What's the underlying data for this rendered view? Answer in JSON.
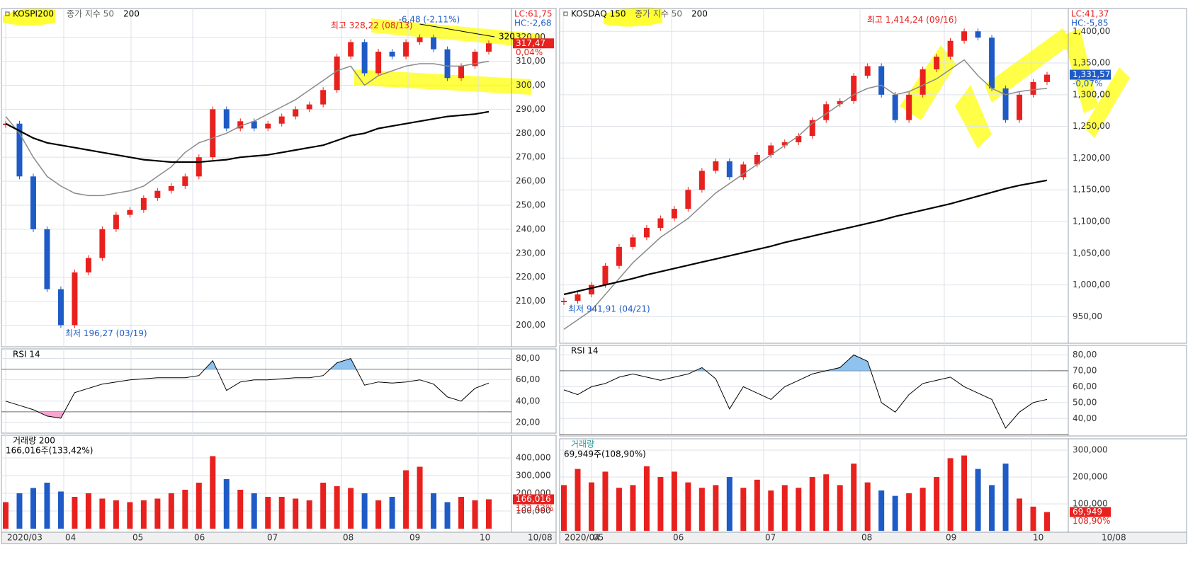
{
  "colors": {
    "up": "#e8211e",
    "down": "#1f5bc6",
    "ma50": "#8a8a8a",
    "ma200": "#000000",
    "rsi_over": "#8ec3f0",
    "rsi_under": "#f5a6cf",
    "text_up": "#e8211e",
    "text_down": "#1f5bc6"
  },
  "panels": [
    {
      "symbol": "KOSPI200",
      "legend_ma": "종가 지수 50",
      "legend_ma2": "200",
      "lc": "LC:61,75",
      "hc": "HC:-2,68",
      "last_price": "317,47",
      "last_change": "0,04%",
      "annotations": {
        "high": "최고 328,22 (08/13)",
        "low": "최저 196,27 (03/19)",
        "drop": "-6,48 (-2,11%)",
        "trend": "320"
      },
      "x_labels": [
        "2020/03",
        "04",
        "05",
        "06",
        "07",
        "08",
        "09",
        "10"
      ],
      "date": "10/08",
      "price": {
        "ylim": [
          191,
          332
        ],
        "yticks": [
          {
            "value": 200,
            "label": "200,00"
          },
          {
            "value": 210,
            "label": "210,00"
          },
          {
            "value": 220,
            "label": "220,00"
          },
          {
            "value": 230,
            "label": "230,00"
          },
          {
            "value": 240,
            "label": "240,00"
          },
          {
            "value": 250,
            "label": "250,00"
          },
          {
            "value": 260,
            "label": "260,00"
          },
          {
            "value": 270,
            "label": "270,00"
          },
          {
            "value": 280,
            "label": "280,00"
          },
          {
            "value": 290,
            "label": "290,00"
          },
          {
            "value": 300,
            "label": "300,00"
          },
          {
            "value": 310,
            "label": "310,00"
          },
          {
            "value": 320,
            "label": "320,00"
          }
        ],
        "close": [
          284,
          262,
          240,
          215,
          200,
          222,
          228,
          240,
          246,
          248,
          253,
          256,
          258,
          262,
          270,
          290,
          282,
          285,
          282,
          284,
          287,
          290,
          292,
          298,
          312,
          318,
          305,
          314,
          312,
          318,
          320,
          315,
          303,
          308,
          314,
          317.47
        ],
        "ma50": [
          287,
          280,
          270,
          262,
          258,
          255,
          254,
          254,
          255,
          256,
          258,
          262,
          266,
          272,
          276,
          278,
          280,
          283,
          285,
          288,
          291,
          294,
          298,
          302,
          306,
          308,
          300,
          304,
          306,
          308,
          309,
          309,
          308,
          308,
          309,
          310
        ],
        "ma200": [
          284,
          281,
          278,
          276,
          275,
          274,
          273,
          272,
          271,
          270,
          269,
          268.5,
          268,
          268,
          268,
          268.5,
          269,
          270,
          270.5,
          271,
          272,
          273,
          274,
          275,
          277,
          279,
          280,
          282,
          283,
          284,
          285,
          286,
          287,
          287.5,
          288,
          289
        ]
      },
      "rsi": {
        "title": "RSI 14",
        "ylim": [
          10,
          89
        ],
        "levels": [
          70,
          30
        ],
        "yticks": [
          {
            "value": 20,
            "label": "20,00"
          },
          {
            "value": 40,
            "label": "40,00"
          },
          {
            "value": 60,
            "label": "60,00"
          },
          {
            "value": 80,
            "label": "80,00"
          }
        ],
        "values": [
          40,
          36,
          32,
          26,
          24,
          48,
          52,
          56,
          58,
          60,
          61,
          62,
          62,
          62,
          64,
          78,
          50,
          58,
          60,
          60,
          61,
          62,
          62,
          64,
          76,
          80,
          55,
          58,
          57,
          58,
          60,
          56,
          44,
          40,
          52,
          57
        ]
      },
      "volume": {
        "title": "거래량 200",
        "summary": "166,016주(133,42%)",
        "last": "166,016",
        "ratio": "133,42%",
        "ylim": [
          -20000,
          528000
        ],
        "yticks": [
          {
            "value": 100000,
            "label": "100,000"
          },
          {
            "value": 200000,
            "label": "200,000"
          },
          {
            "value": 300000,
            "label": "300,000"
          },
          {
            "value": 400000,
            "label": "400,000"
          }
        ],
        "values": [
          150000,
          200000,
          230000,
          260000,
          210000,
          180000,
          200000,
          170000,
          160000,
          150000,
          160000,
          170000,
          200000,
          220000,
          260000,
          410000,
          280000,
          220000,
          200000,
          180000,
          180000,
          170000,
          160000,
          260000,
          240000,
          230000,
          200000,
          160000,
          180000,
          330000,
          350000,
          200000,
          150000,
          180000,
          160000,
          166016
        ]
      }
    },
    {
      "symbol": "KOSDAQ 150",
      "legend_ma": "종가 지수 50",
      "legend_ma2": "200",
      "lc": "LC:41,37",
      "hc": "HC:-5,85",
      "last_price": "1,331,57",
      "last_change": "-0,07%",
      "annotations": {
        "high": "최고 1,414,24 (09/16)",
        "low": "최저 941,91 (04/21)"
      },
      "x_labels": [
        "2020/04",
        "05",
        "06",
        "07",
        "08",
        "09",
        "10"
      ],
      "date": "10/08",
      "price": {
        "ylim": [
          908,
          1436
        ],
        "yticks": [
          {
            "value": 950,
            "label": "950,00"
          },
          {
            "value": 1000,
            "label": "1,000,00"
          },
          {
            "value": 1050,
            "label": "1,050,00"
          },
          {
            "value": 1100,
            "label": "1,100,00"
          },
          {
            "value": 1150,
            "label": "1,150,00"
          },
          {
            "value": 1200,
            "label": "1,200,00"
          },
          {
            "value": 1250,
            "label": "1,250,00"
          },
          {
            "value": 1300,
            "label": "1,300,00"
          },
          {
            "value": 1350,
            "label": "1,350,00"
          },
          {
            "value": 1400,
            "label": "1,400,00"
          }
        ],
        "close": [
          975,
          985,
          1000,
          1030,
          1060,
          1075,
          1090,
          1105,
          1120,
          1150,
          1180,
          1195,
          1170,
          1190,
          1205,
          1220,
          1225,
          1235,
          1260,
          1285,
          1290,
          1330,
          1345,
          1300,
          1260,
          1300,
          1340,
          1360,
          1385,
          1400,
          1390,
          1310,
          1260,
          1300,
          1320,
          1331.57
        ],
        "ma50": [
          930,
          945,
          960,
          985,
          1010,
          1035,
          1055,
          1075,
          1090,
          1105,
          1125,
          1145,
          1160,
          1175,
          1190,
          1205,
          1220,
          1235,
          1255,
          1270,
          1285,
          1300,
          1310,
          1315,
          1300,
          1305,
          1315,
          1325,
          1340,
          1355,
          1330,
          1310,
          1300,
          1305,
          1308,
          1310
        ],
        "ma200": [
          985,
          990,
          995,
          1000,
          1005,
          1010,
          1016,
          1021,
          1026,
          1031,
          1036,
          1041,
          1046,
          1051,
          1056,
          1061,
          1067,
          1072,
          1077,
          1082,
          1087,
          1092,
          1097,
          1102,
          1108,
          1113,
          1118,
          1123,
          1128,
          1134,
          1140,
          1146,
          1152,
          1157,
          1161,
          1165
        ]
      },
      "rsi": {
        "title": "RSI 14",
        "ylim": [
          29,
          86
        ],
        "levels": [
          70,
          30
        ],
        "yticks": [
          {
            "value": 40,
            "label": "40,00"
          },
          {
            "value": 50,
            "label": "50,00"
          },
          {
            "value": 60,
            "label": "60,00"
          },
          {
            "value": 70,
            "label": "70,00"
          },
          {
            "value": 80,
            "label": "80,00"
          }
        ],
        "values": [
          58,
          55,
          60,
          62,
          66,
          68,
          66,
          64,
          66,
          68,
          72,
          65,
          46,
          60,
          56,
          52,
          60,
          64,
          68,
          70,
          72,
          80,
          76,
          50,
          44,
          55,
          62,
          64,
          66,
          60,
          56,
          52,
          34,
          44,
          50,
          52
        ]
      },
      "volume": {
        "title": "거래량",
        "summary": "69,949주(108,90%)",
        "last": "69,949",
        "ratio": "108,90%",
        "ylim": [
          -5000,
          342000
        ],
        "yticks": [
          {
            "value": 100000,
            "label": "100,000"
          },
          {
            "value": 200000,
            "label": "200,000"
          },
          {
            "value": 300000,
            "label": "300,000"
          }
        ],
        "values": [
          170000,
          230000,
          180000,
          220000,
          160000,
          170000,
          240000,
          200000,
          220000,
          180000,
          160000,
          170000,
          200000,
          160000,
          190000,
          150000,
          170000,
          160000,
          200000,
          210000,
          170000,
          250000,
          180000,
          150000,
          130000,
          140000,
          160000,
          200000,
          270000,
          280000,
          230000,
          170000,
          250000,
          120000,
          90000,
          69949
        ]
      }
    }
  ]
}
